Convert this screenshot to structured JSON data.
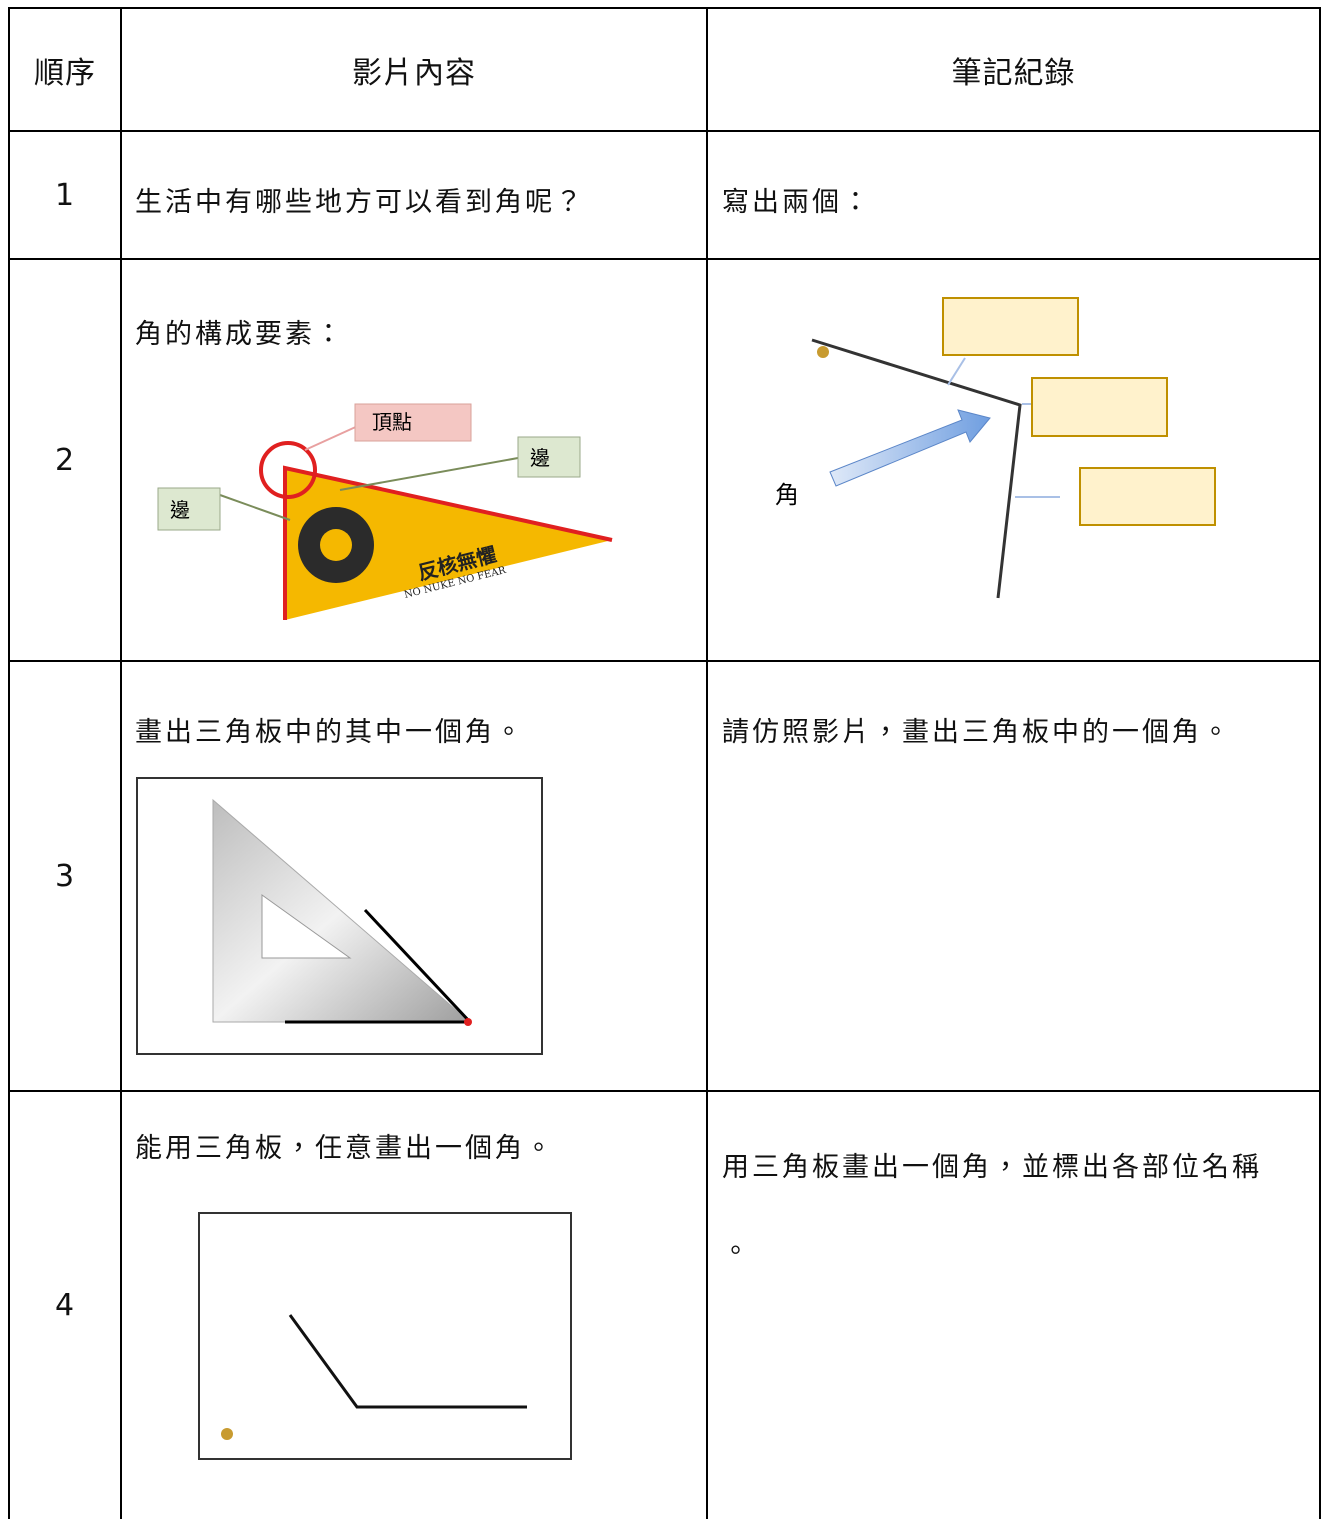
{
  "table": {
    "header": [
      "順序",
      "影片內容",
      "筆記紀錄"
    ],
    "rows": [
      {
        "order": "1",
        "content": "生活中有哪些地方可以看到角呢？",
        "notes": "寫出兩個："
      },
      {
        "order": "2",
        "content": "角的構成要素：",
        "notes": ""
      },
      {
        "order": "3",
        "content": "畫出三角板中的其中一個角。",
        "notes": "請仿照影片，畫出三角板中的一個角。"
      },
      {
        "order": "4",
        "content": "能用三角板，任意畫出一個角。",
        "notes": "用三角板畫出一個角，並標出各部位名稱。"
      }
    ]
  },
  "figures": {
    "pennant": {
      "vertex": "頂點",
      "side_right": "邊",
      "side_left": "邊",
      "slogan": "反核無懼",
      "slogan_en": "NO NUKE  NO FEAR"
    },
    "angle": {
      "label": "角"
    }
  }
}
